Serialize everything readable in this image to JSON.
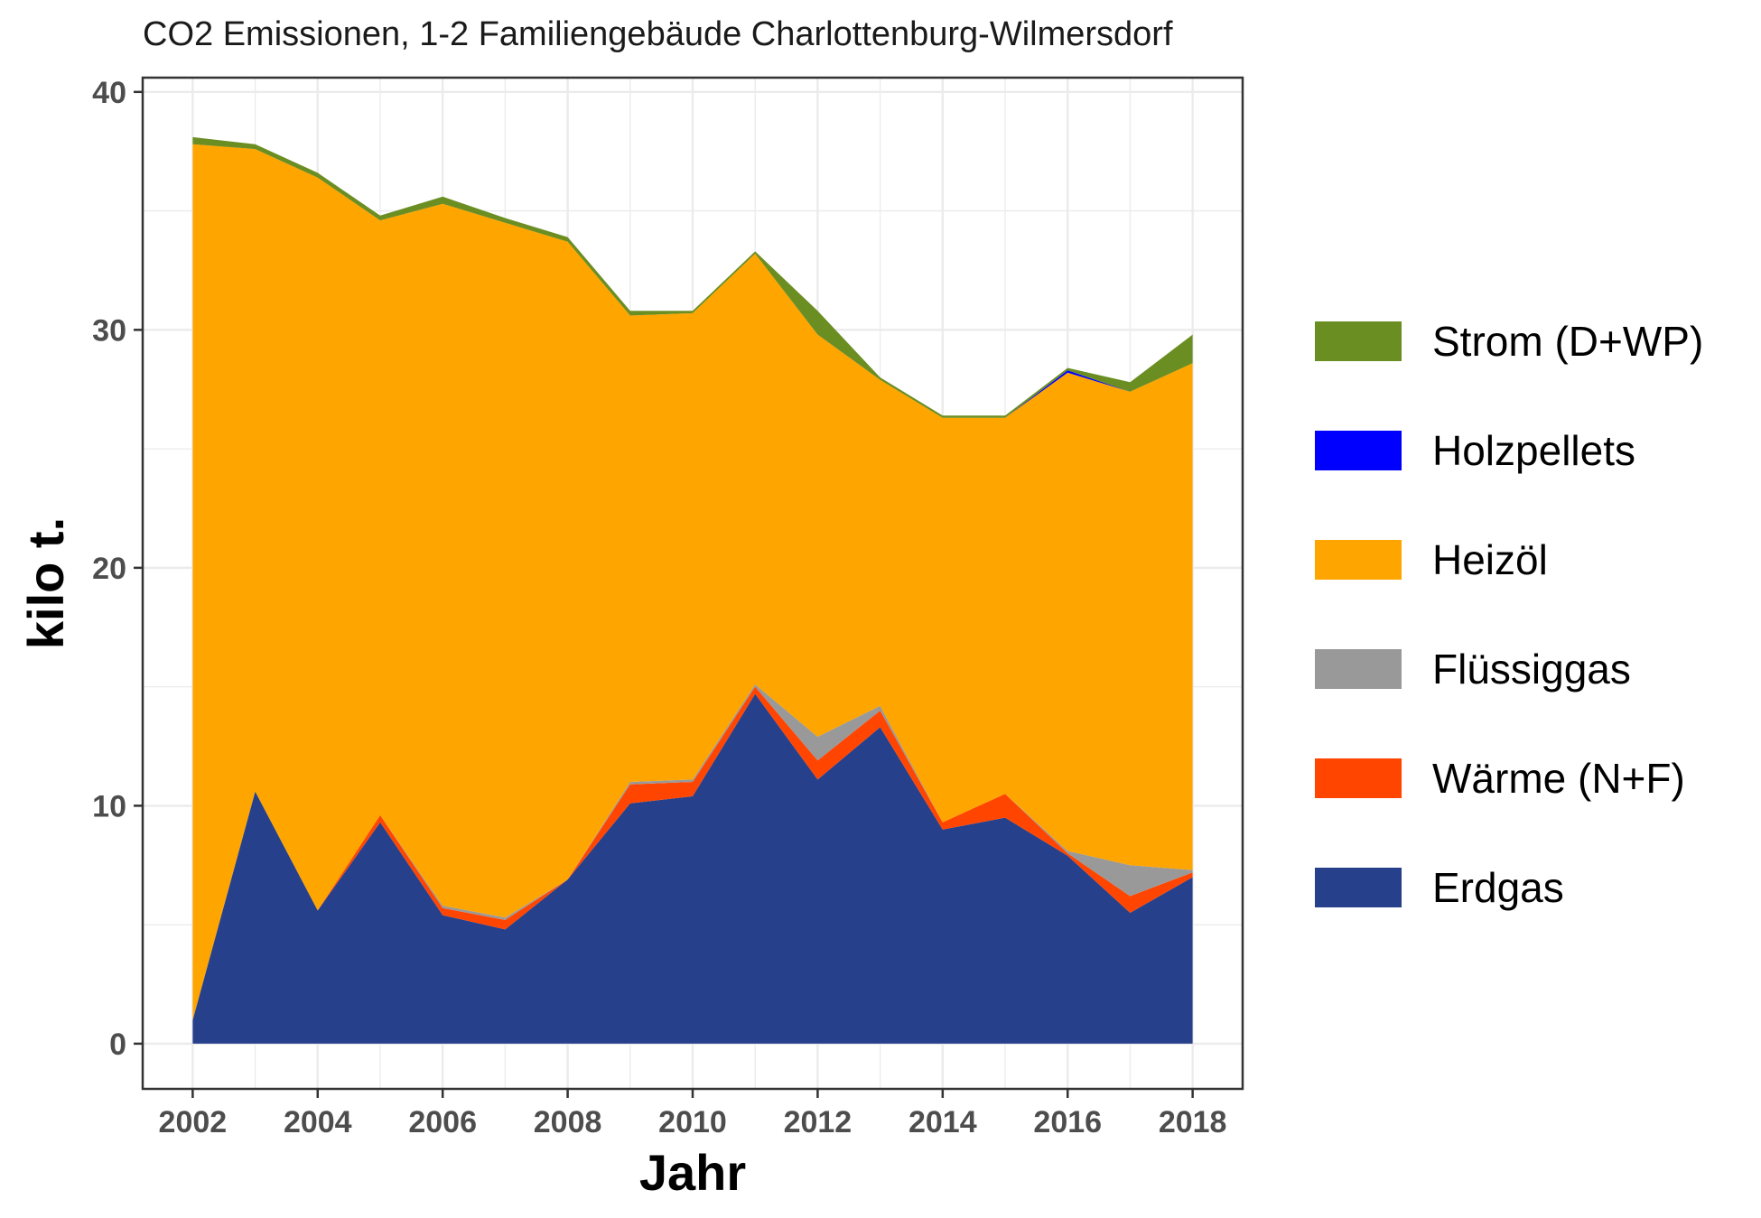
{
  "chart_data": {
    "type": "area",
    "stacked": true,
    "title": "CO2 Emissionen, 1-2 Familiengebäude Charlottenburg-Wilmersdorf",
    "xlabel": "Jahr",
    "ylabel": "kilo t.",
    "xlim": [
      2001.2,
      2018.8
    ],
    "ylim": [
      -1.9,
      40.6
    ],
    "xticks": [
      "2002",
      "2004",
      "2006",
      "2008",
      "2010",
      "2012",
      "2014",
      "2016",
      "2018"
    ],
    "yticks": [
      "0",
      "10",
      "20",
      "30",
      "40"
    ],
    "grid": true,
    "legend_position": "right",
    "x": [
      2002,
      2003,
      2004,
      2005,
      2006,
      2007,
      2008,
      2009,
      2010,
      2011,
      2012,
      2013,
      2014,
      2015,
      2016,
      2017,
      2018
    ],
    "series": [
      {
        "name": "Erdgas",
        "color": "#27408B",
        "values": [
          1.0,
          10.6,
          5.6,
          9.3,
          5.4,
          4.8,
          6.9,
          10.1,
          10.4,
          14.7,
          11.1,
          13.3,
          9.0,
          9.5,
          7.9,
          5.5,
          7.0
        ]
      },
      {
        "name": "Wärme (N+F)",
        "color": "#FF4500",
        "values": [
          0.0,
          0.0,
          0.0,
          0.3,
          0.3,
          0.4,
          0.0,
          0.8,
          0.6,
          0.3,
          0.8,
          0.7,
          0.3,
          1.0,
          0.1,
          0.7,
          0.2
        ]
      },
      {
        "name": "Flüssiggas",
        "color": "#999999",
        "values": [
          0.0,
          0.0,
          0.0,
          0.0,
          0.1,
          0.1,
          0.0,
          0.1,
          0.1,
          0.1,
          1.0,
          0.2,
          0.0,
          0.0,
          0.1,
          1.3,
          0.1
        ]
      },
      {
        "name": "Heizöl",
        "color": "#FFA500",
        "values": [
          36.8,
          27.0,
          30.8,
          25.0,
          29.5,
          29.2,
          26.8,
          19.6,
          19.6,
          18.1,
          16.9,
          13.7,
          17.0,
          15.8,
          20.1,
          19.9,
          21.3
        ]
      },
      {
        "name": "Holzpellets",
        "color": "#0000FF",
        "values": [
          0.0,
          0.0,
          0.0,
          0.0,
          0.0,
          0.0,
          0.0,
          0.0,
          0.0,
          0.0,
          0.0,
          0.0,
          0.0,
          0.0,
          0.1,
          0.0,
          0.0
        ]
      },
      {
        "name": "Strom (D+WP)",
        "color": "#6B8E23",
        "values": [
          0.3,
          0.2,
          0.2,
          0.2,
          0.3,
          0.2,
          0.2,
          0.2,
          0.1,
          0.1,
          1.0,
          0.1,
          0.1,
          0.1,
          0.1,
          0.4,
          1.2
        ]
      }
    ]
  }
}
